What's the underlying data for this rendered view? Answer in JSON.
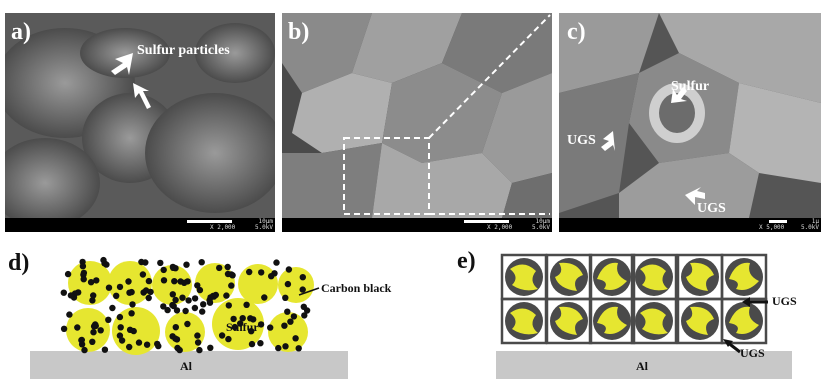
{
  "panels": {
    "a": {
      "label": "a)",
      "annotation": "Sulfur particles",
      "scale_len": "10μm",
      "magnification": "X 2,000",
      "voltage": "5.0kV"
    },
    "b": {
      "label": "b)",
      "scale_len": "10μm",
      "magnification": "X 2,000",
      "voltage": "5.0kV"
    },
    "c": {
      "label": "c)",
      "annotation_sulfur": "Sulfur",
      "annotation_ugs_left": "UGS",
      "annotation_ugs_bottom": "UGS",
      "scale_len": "1μ",
      "magnification": "X 5,000",
      "voltage": "5.0kV"
    },
    "d": {
      "label": "d)",
      "carbon_label": "Carbon black",
      "sulfur_label": "Sulfur",
      "substrate_label": "Al"
    },
    "e": {
      "label": "e)",
      "ugs_label_top": "UGS",
      "ugs_label_bottom": "UGS",
      "substrate_label": "Al"
    }
  },
  "colors": {
    "sulfur": "#e6e630",
    "carbon": "#111111",
    "ugs": "#4a4a4a",
    "substrate": "#c8c8c8"
  }
}
